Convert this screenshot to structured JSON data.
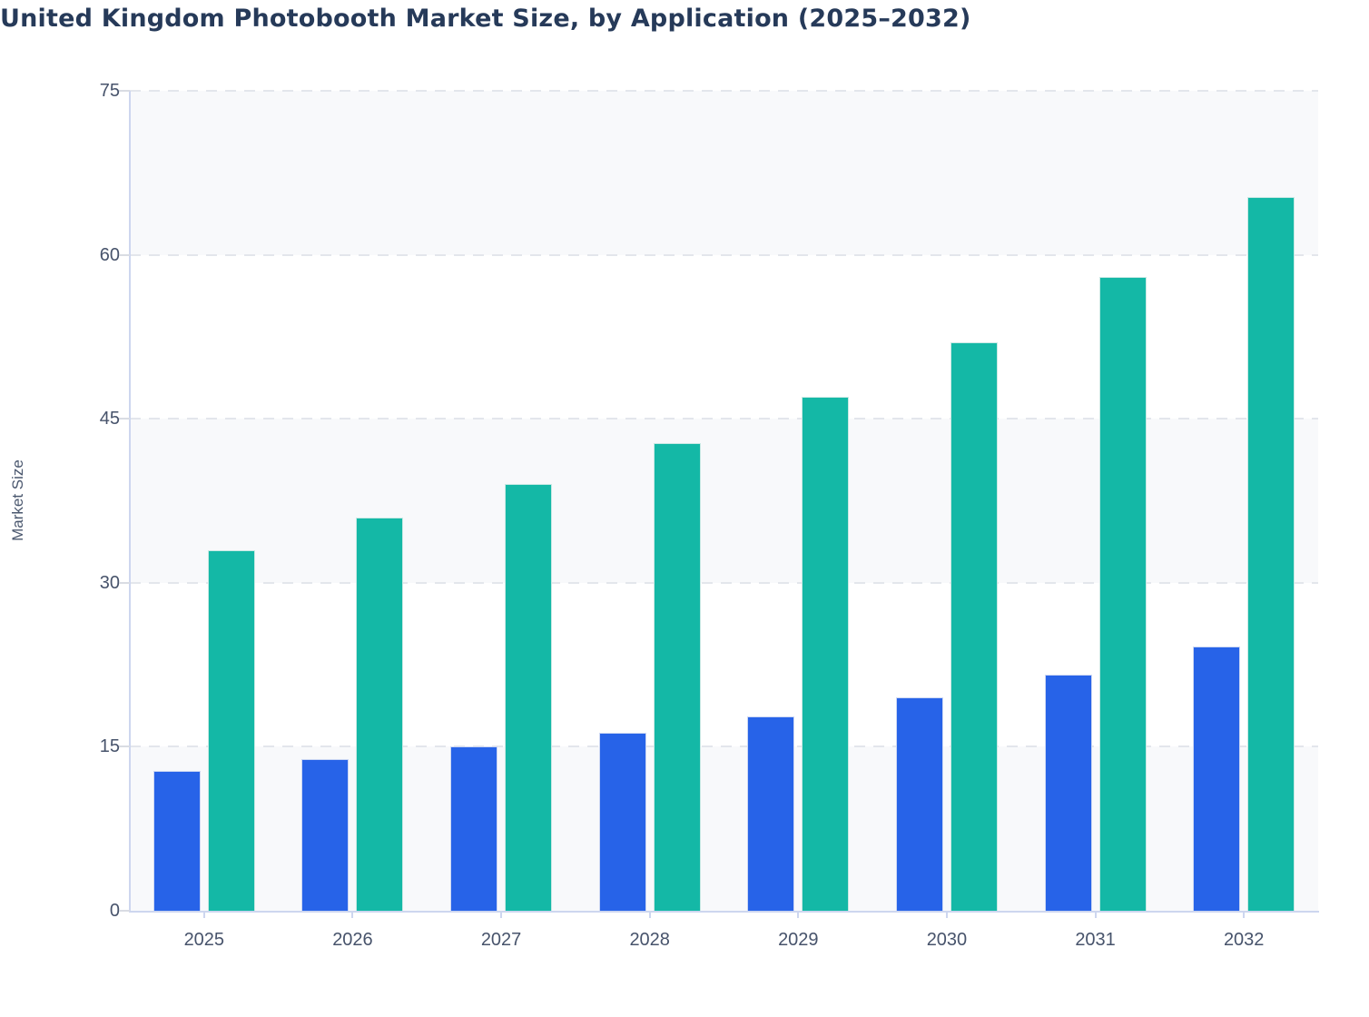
{
  "title": "United Kingdom Photobooth Market Size, by Application (2025–2032)",
  "colors": {
    "bar_blue": "#2763e8",
    "bar_teal": "#14b8a6",
    "axis_line": "#cdd6ef",
    "grid_line": "#e3e6ec",
    "band_fill": "#f8f9fb",
    "tick_label": "#47536b",
    "title_text": "#263a59"
  },
  "chart_data": {
    "type": "bar",
    "title": "United Kingdom Photobooth Market Size, by Application (2025–2032)",
    "categories": [
      "2025",
      "2026",
      "2027",
      "2028",
      "2029",
      "2030",
      "2031",
      "2032"
    ],
    "series": [
      {
        "name": "",
        "color": "#2763e8",
        "values": [
          12.8,
          13.9,
          15,
          16.3,
          17.8,
          19.5,
          21.6,
          24.2
        ]
      },
      {
        "name": "",
        "color": "#14b8a6",
        "values": [
          33,
          36,
          39,
          42.8,
          47,
          52,
          58,
          65.3
        ]
      }
    ],
    "xlabel": "",
    "ylabel": "Market Size",
    "ylim": [
      0,
      75
    ],
    "yticks": [
      0,
      15,
      30,
      45,
      60,
      75
    ],
    "grid": "horizontal dashed",
    "legend": "none",
    "plot_background": "alternating horizontal bands"
  }
}
